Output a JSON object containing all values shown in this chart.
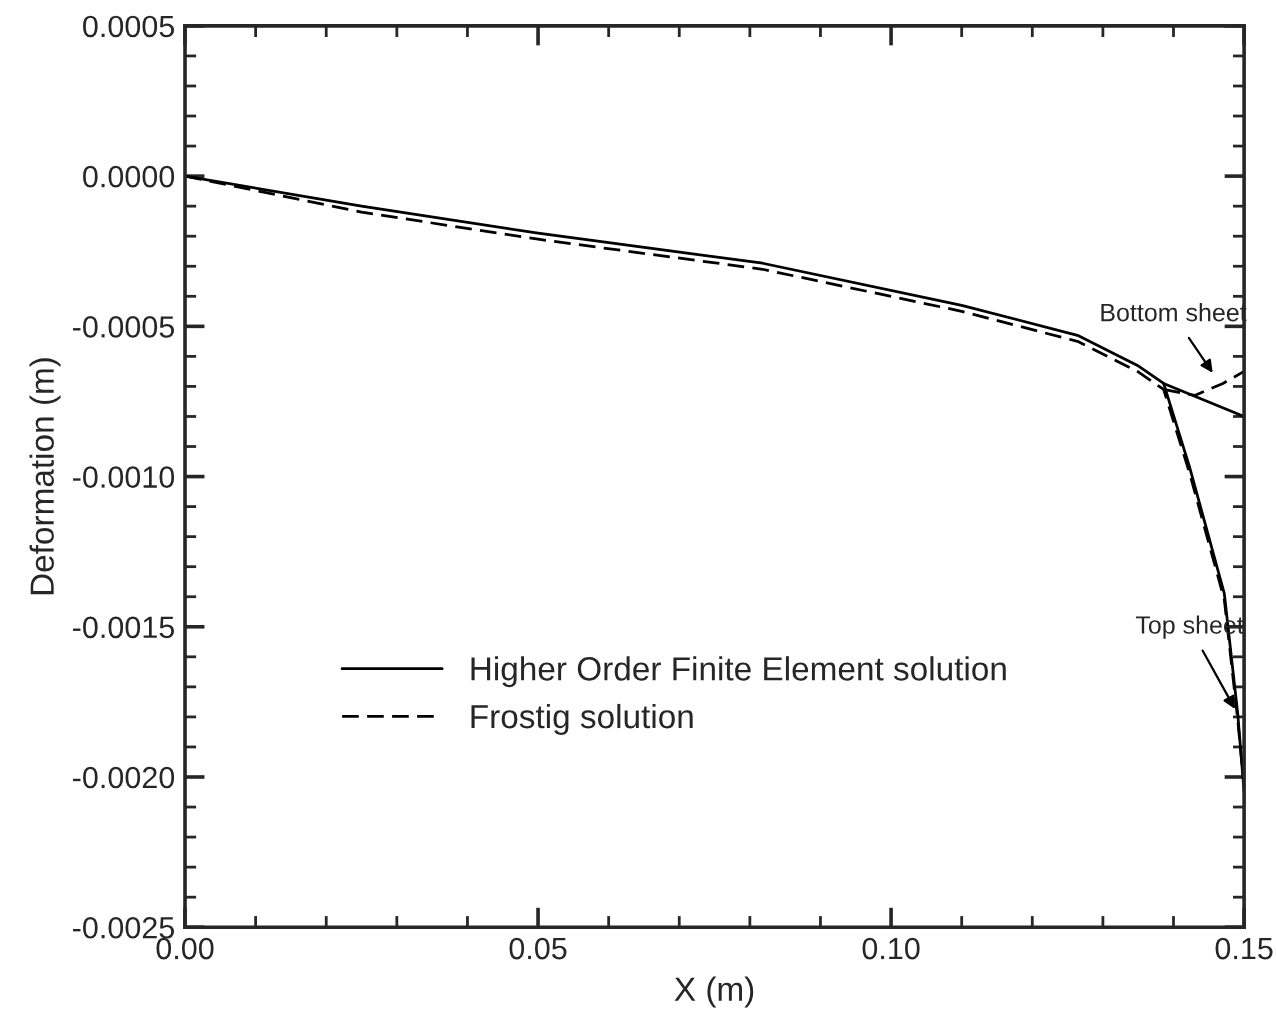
{
  "chart_data": {
    "type": "line",
    "xlabel": "X (m)",
    "ylabel": "Deformation (m)",
    "xlim": [
      0,
      0.15
    ],
    "ylim": [
      -0.0025,
      0.0005
    ],
    "xticks": [
      {
        "value": 0,
        "label": "0.00"
      },
      {
        "value": 0.05,
        "label": "0.05"
      },
      {
        "value": 0.1,
        "label": "0.10"
      },
      {
        "value": 0.15,
        "label": "0.15"
      }
    ],
    "yticks": [
      {
        "value": 0.0005,
        "label": "0.0005"
      },
      {
        "value": 0,
        "label": "0.0000"
      },
      {
        "value": -0.0005,
        "label": "-0.0005"
      },
      {
        "value": -0.001,
        "label": "-0.0010"
      },
      {
        "value": -0.0015,
        "label": "-0.0015"
      },
      {
        "value": -0.002,
        "label": "-0.0020"
      },
      {
        "value": -0.0025,
        "label": "-0.0025"
      }
    ],
    "grid": false,
    "legend": "bottom left",
    "marker": "none",
    "series": [
      {
        "name": "Higher Order Finite Element solution",
        "color": "#000000",
        "line_style": "solid",
        "x": [
          0,
          0.025,
          0.05,
          0.0818,
          0.11,
          0.1264,
          0.1349,
          0.1386,
          0.1423,
          0.1472,
          0.1491,
          0.15
        ],
        "values": [
          0,
          -0.0001,
          -0.00019,
          -0.00029,
          -0.00043,
          -0.00053,
          -0.00063,
          -0.00069,
          -0.00097,
          -0.00139,
          -0.00179,
          -0.00205
        ]
      },
      {
        "color": "#000000",
        "line_style": "solid",
        "x": [
          0.1386,
          0.15
        ],
        "values": [
          -0.00069,
          -0.0008
        ]
      },
      {
        "name": "Frostig solution",
        "color": "#000000",
        "line_style": "dashed",
        "x": [
          0,
          0.025,
          0.05,
          0.0818,
          0.11,
          0.1264,
          0.1349,
          0.1386,
          0.1423,
          0.1472,
          0.1491,
          0.15
        ],
        "values": [
          0,
          -0.00012,
          -0.00021,
          -0.00031,
          -0.00045,
          -0.00055,
          -0.00065,
          -0.00071,
          -0.00099,
          -0.00141,
          -0.00181,
          -0.00203
        ]
      },
      {
        "color": "#000000",
        "line_style": "dashed",
        "x": [
          0.1386,
          0.143,
          0.147,
          0.15
        ],
        "values": [
          -0.00071,
          -0.00073,
          -0.00069,
          -0.00065
        ]
      }
    ],
    "annotations": [
      {
        "text": "Bottom sheet",
        "x": 0.146,
        "y": -0.00067
      },
      {
        "text": "Top sheet",
        "x": 0.1491,
        "y": -0.00179
      }
    ]
  }
}
